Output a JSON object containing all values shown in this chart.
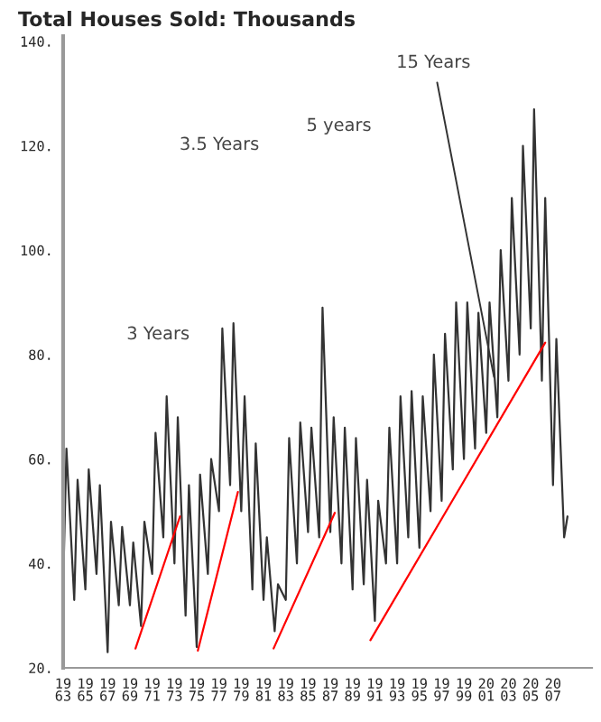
{
  "chart_data": {
    "type": "line",
    "title": "Total Houses Sold: Thousands",
    "xlim": [
      1963,
      2010.5
    ],
    "xticks": [
      1963,
      1965,
      1967,
      1969,
      1971,
      1973,
      1975,
      1977,
      1979,
      1981,
      1983,
      1985,
      1987,
      1989,
      1991,
      1993,
      1995,
      1997,
      1999,
      2001,
      2003,
      2005,
      2007
    ],
    "ylim": [
      20,
      141
    ],
    "yticks": [
      {
        "value": 20,
        "label": "20."
      },
      {
        "value": 40,
        "label": "40."
      },
      {
        "value": 60,
        "label": "60."
      },
      {
        "value": 80,
        "label": "80."
      },
      {
        "value": 100,
        "label": "100."
      },
      {
        "value": 120,
        "label": "120."
      },
      {
        "value": 140,
        "label": "140."
      }
    ],
    "grid": false,
    "annotations": [
      "3 Years",
      "3.5 Years",
      "5 years",
      {
        "text": "15 Years",
        "x": 2001.7,
        "y": 75.7
      }
    ],
    "series": [
      {
        "color": "#333333",
        "x": [
          1963.0,
          1963.3,
          1964.0,
          1964.3,
          1965.0,
          1965.3,
          1966.0,
          1966.3,
          1967.0,
          1967.3,
          1968.0,
          1968.3,
          1969.0,
          1969.3,
          1970.0,
          1970.3,
          1971.0,
          1971.3,
          1972.0,
          1972.3,
          1973.0,
          1973.3,
          1974.0,
          1974.3,
          1975.0,
          1975.3,
          1976.0,
          1976.3,
          1977.0,
          1977.3,
          1978.0,
          1978.3,
          1979.0,
          1979.3,
          1980.0,
          1980.3,
          1981.0,
          1981.3,
          1982.0,
          1982.3,
          1983.0,
          1983.3,
          1984.0,
          1984.3,
          1985.0,
          1985.3,
          1986.0,
          1986.3,
          1987.0,
          1987.3,
          1988.0,
          1988.3,
          1989.0,
          1989.3,
          1990.0,
          1990.3,
          1991.0,
          1991.3,
          1992.0,
          1992.3,
          1993.0,
          1993.3,
          1994.0,
          1994.3,
          1995.0,
          1995.3,
          1996.0,
          1996.3,
          1997.0,
          1997.3,
          1998.0,
          1998.3,
          1999.0,
          1999.3,
          2000.0,
          2000.3,
          2001.0,
          2001.3,
          2002.0,
          2002.3,
          2003.0,
          2003.3,
          2004.0,
          2004.3,
          2005.0,
          2005.3,
          2006.0,
          2006.3,
          2007.0,
          2007.3,
          2008.0,
          2008.3
        ],
        "values": [
          35,
          62,
          33,
          56,
          35,
          58,
          38,
          55,
          23,
          48,
          32,
          47,
          32,
          44,
          28,
          48,
          38,
          65,
          45,
          72,
          40,
          68,
          30,
          55,
          24,
          57,
          38,
          60,
          50,
          85,
          55,
          86,
          50,
          72,
          35,
          63,
          33,
          45,
          27,
          36,
          33,
          64,
          40,
          67,
          46,
          66,
          45,
          89,
          46,
          68,
          40,
          66,
          35,
          64,
          36,
          56,
          29,
          52,
          40,
          66,
          40,
          72,
          45,
          73,
          43,
          72,
          50,
          80,
          52,
          84,
          58,
          90,
          60,
          90,
          62,
          88,
          65,
          90,
          68,
          100,
          75,
          110,
          80,
          120,
          85,
          127,
          75,
          110,
          55,
          83,
          45,
          49
        ]
      },
      {
        "color": "#ff0000",
        "x": [
          1969.5,
          1973.5
        ],
        "values": [
          23.7,
          49
        ]
      },
      {
        "color": "#ff0000",
        "x": [
          1975.1,
          1978.7
        ],
        "values": [
          23.3,
          53.7
        ]
      },
      {
        "color": "#ff0000",
        "x": [
          1981.9,
          1987.4
        ],
        "values": [
          23.7,
          49.7
        ]
      },
      {
        "color": "#ff0000",
        "x": [
          1990.6,
          2006.3
        ],
        "values": [
          25.3,
          82.3
        ]
      }
    ]
  }
}
